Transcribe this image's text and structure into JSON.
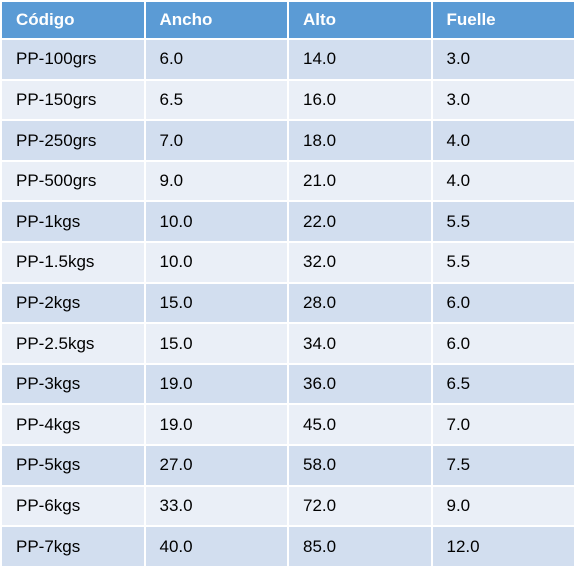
{
  "table": {
    "header": [
      "Código",
      "Ancho",
      "Alto",
      "Fuelle"
    ],
    "rows": [
      [
        "PP-100grs",
        "6.0",
        "14.0",
        "3.0"
      ],
      [
        "PP-150grs",
        "6.5",
        "16.0",
        "3.0"
      ],
      [
        "PP-250grs",
        "7.0",
        "18.0",
        "4.0"
      ],
      [
        "PP-500grs",
        "9.0",
        "21.0",
        "4.0"
      ],
      [
        "PP-1kgs",
        "10.0",
        "22.0",
        "5.5"
      ],
      [
        "PP-1.5kgs",
        "10.0",
        "32.0",
        "5.5"
      ],
      [
        "PP-2kgs",
        "15.0",
        "28.0",
        "6.0"
      ],
      [
        "PP-2.5kgs",
        "15.0",
        "34.0",
        "6.0"
      ],
      [
        "PP-3kgs",
        "19.0",
        "36.0",
        "6.5"
      ],
      [
        "PP-4kgs",
        "19.0",
        "45.0",
        "7.0"
      ],
      [
        "PP-5kgs",
        "27.0",
        "58.0",
        "7.5"
      ],
      [
        "PP-6kgs",
        "33.0",
        "72.0",
        "9.0"
      ],
      [
        "PP-7kgs",
        "40.0",
        "85.0",
        "12.0"
      ]
    ]
  }
}
